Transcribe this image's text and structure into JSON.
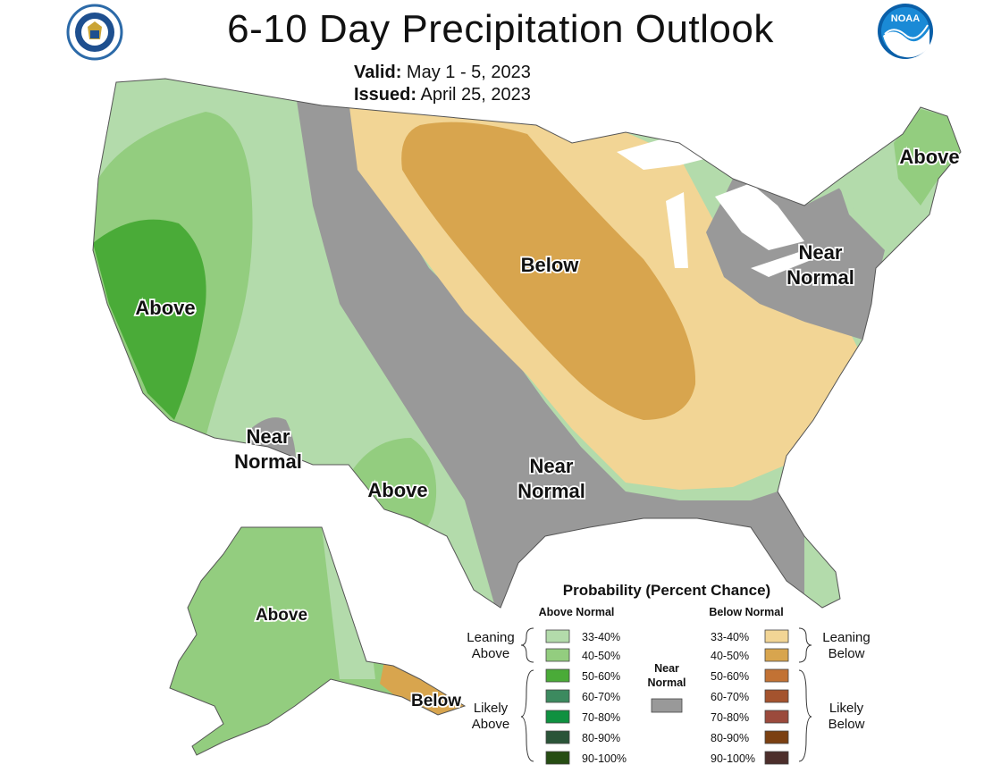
{
  "header": {
    "title": "6-10 Day Precipitation Outlook",
    "valid_label": "Valid:",
    "valid_value": "May 1 - 5, 2023",
    "issued_label": "Issued:",
    "issued_value": "April 25, 2023"
  },
  "logos": {
    "left": "department-of-commerce-seal",
    "right_text": "NOAA"
  },
  "map_labels": {
    "west_above": "Above",
    "ne_above": "Above",
    "central_below": "Below",
    "ne_near_1": "Near",
    "ne_near_2": "Normal",
    "sw_near_1": "Near",
    "sw_near_2": "Normal",
    "tx_above": "Above",
    "gulf_near_1": "Near",
    "gulf_near_2": "Normal",
    "ak_above": "Above",
    "ak_below": "Below"
  },
  "colors": {
    "above_33_40": "#b3dbab",
    "above_40_50": "#93cd7f",
    "above_50_60": "#4aab38",
    "above_60_70": "#3c8a5f",
    "above_70_80": "#0f9140",
    "above_80_90": "#2a5438",
    "above_90_100": "#264d13",
    "near_normal": "#999999",
    "below_33_40": "#f2d595",
    "below_40_50": "#d8a54e",
    "below_50_60": "#c27234",
    "below_60_70": "#a4532e",
    "below_70_80": "#9b4a3c",
    "below_80_90": "#7b4012",
    "below_90_100": "#4c2e2b"
  },
  "legend": {
    "title": "Probability (Percent Chance)",
    "above_header": "Above Normal",
    "below_header": "Below Normal",
    "near_1": "Near",
    "near_2": "Normal",
    "leaning_above_1": "Leaning",
    "leaning_above_2": "Above",
    "likely_above_1": "Likely",
    "likely_above_2": "Above",
    "leaning_below_1": "Leaning",
    "leaning_below_2": "Below",
    "likely_below_1": "Likely",
    "likely_below_2": "Below",
    "above_bins": [
      "33-40%",
      "40-50%",
      "50-60%",
      "60-70%",
      "70-80%",
      "80-90%",
      "90-100%"
    ],
    "below_bins": [
      "33-40%",
      "40-50%",
      "50-60%",
      "60-70%",
      "70-80%",
      "80-90%",
      "90-100%"
    ]
  }
}
